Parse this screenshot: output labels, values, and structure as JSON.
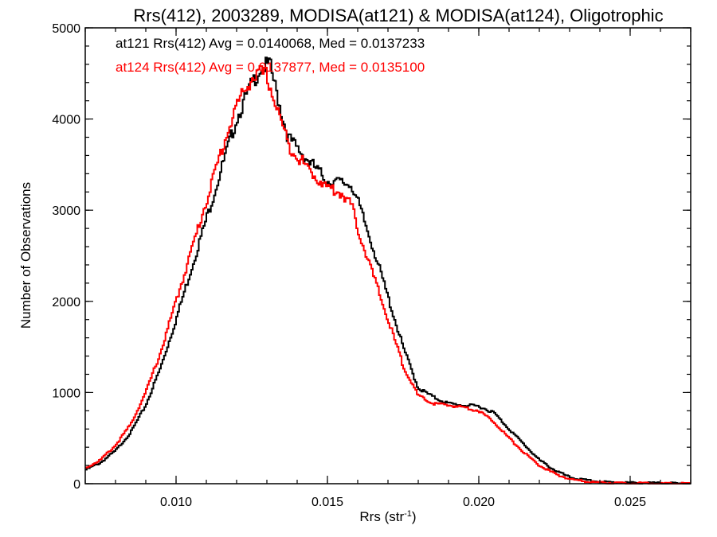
{
  "chart_data": {
    "type": "line",
    "title": "Rrs(412), 2003289, MODISA(at121) & MODISA(at124), Oligotrophic",
    "xlabel_base": "Rrs (str",
    "xlabel_sup": "-1",
    "xlabel_close": ")",
    "ylabel": "Number of Observations",
    "xlim": [
      0.007,
      0.027
    ],
    "ylim": [
      0,
      5000
    ],
    "x_ticks": [
      0.01,
      0.015,
      0.02,
      0.025
    ],
    "x_tick_labels": [
      "0.010",
      "0.015",
      "0.020",
      "0.025"
    ],
    "y_ticks": [
      0,
      1000,
      2000,
      3000,
      4000,
      5000
    ],
    "y_tick_labels": [
      "0",
      "1000",
      "2000",
      "3000",
      "4000",
      "5000"
    ],
    "grid": false,
    "annotations": [
      "at121 Rrs(412) Avg = 0.0140068, Med = 0.0137233",
      "at124 Rrs(412) Avg = 0.0137877, Med = 0.0135100"
    ],
    "series": [
      {
        "color": "#000000",
        "x": [
          0.007,
          0.0075,
          0.008,
          0.0085,
          0.009,
          0.0095,
          0.01,
          0.0105,
          0.011,
          0.0115,
          0.012,
          0.0125,
          0.0128,
          0.0131,
          0.0133,
          0.0135,
          0.0137,
          0.014,
          0.0145,
          0.015,
          0.0155,
          0.0158,
          0.016,
          0.0165,
          0.017,
          0.0175,
          0.018,
          0.0185,
          0.019,
          0.0195,
          0.02,
          0.0205,
          0.021,
          0.0215,
          0.022,
          0.0225,
          0.023,
          0.0235,
          0.024,
          0.025,
          0.026,
          0.027
        ],
        "y": [
          150,
          230,
          360,
          560,
          860,
          1280,
          1800,
          2350,
          2900,
          3450,
          4000,
          4380,
          4560,
          4600,
          4320,
          4050,
          3800,
          3680,
          3500,
          3320,
          3300,
          3280,
          3100,
          2600,
          2050,
          1500,
          1050,
          950,
          880,
          860,
          850,
          780,
          600,
          430,
          260,
          150,
          70,
          40,
          20,
          10,
          5,
          0
        ]
      },
      {
        "color": "#ff0000",
        "x": [
          0.007,
          0.0075,
          0.008,
          0.0085,
          0.009,
          0.0095,
          0.01,
          0.0105,
          0.011,
          0.0115,
          0.012,
          0.0125,
          0.0128,
          0.013,
          0.0132,
          0.0135,
          0.0137,
          0.014,
          0.0145,
          0.015,
          0.0155,
          0.0158,
          0.016,
          0.0165,
          0.017,
          0.0175,
          0.018,
          0.0185,
          0.019,
          0.0195,
          0.02,
          0.0205,
          0.021,
          0.0215,
          0.022,
          0.0225,
          0.023,
          0.0235,
          0.024,
          0.025,
          0.026,
          0.027
        ],
        "y": [
          170,
          260,
          420,
          650,
          1000,
          1450,
          2000,
          2550,
          3100,
          3650,
          4150,
          4450,
          4500,
          4480,
          4250,
          3950,
          3720,
          3600,
          3400,
          3250,
          3180,
          3050,
          2800,
          2300,
          1800,
          1300,
          960,
          880,
          860,
          840,
          800,
          680,
          500,
          340,
          200,
          110,
          50,
          25,
          12,
          5,
          2,
          0
        ]
      }
    ]
  }
}
